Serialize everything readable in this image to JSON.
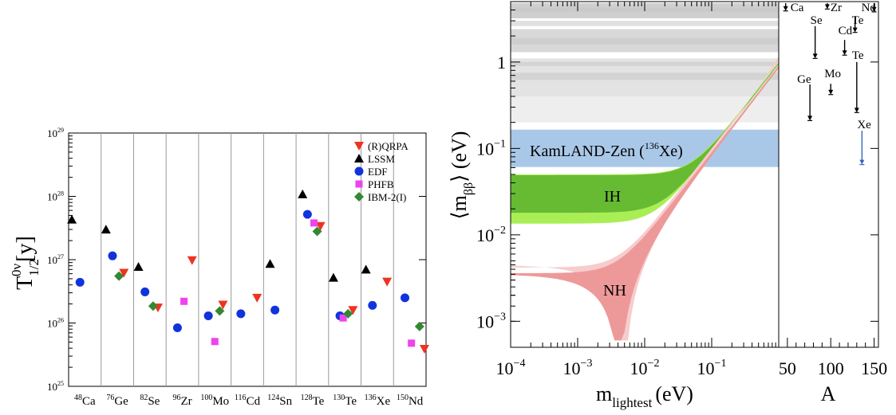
{
  "colors": {
    "qrpa": "#ee3322",
    "lssm": "#000000",
    "edf": "#1133dd",
    "phfb": "#ee44ee",
    "ibm": "#338833",
    "ih_dark": "#66bb33",
    "ih_light": "#aaee55",
    "nh_dark": "#ee9999",
    "nh_light": "#f7cccc",
    "kamland": "#a9c8e8",
    "sens_arrow": "#3366bb"
  },
  "chart_data": [
    {
      "type": "scatter",
      "ylabel": "T",
      "ylabel_sup": "0ν",
      "ylabel_sub": "1/2",
      "ylabel_unit": "[y]",
      "y_scale": "log",
      "ylim": [
        1e+25,
        1e+29
      ],
      "yticks": [
        {
          "value": 1e+25,
          "mant": "10",
          "exp": "25"
        },
        {
          "value": 1e+26,
          "mant": "10",
          "exp": "26"
        },
        {
          "value": 1e+27,
          "mant": "10",
          "exp": "27"
        },
        {
          "value": 1e+28,
          "mant": "10",
          "exp": "28"
        },
        {
          "value": 1e+29,
          "mant": "10",
          "exp": "29"
        }
      ],
      "categories": [
        {
          "mass": "48",
          "sym": "Ca"
        },
        {
          "mass": "76",
          "sym": "Ge"
        },
        {
          "mass": "82",
          "sym": "Se"
        },
        {
          "mass": "96",
          "sym": "Zr"
        },
        {
          "mass": "100",
          "sym": "Mo"
        },
        {
          "mass": "116",
          "sym": "Cd"
        },
        {
          "mass": "124",
          "sym": "Sn"
        },
        {
          "mass": "128",
          "sym": "Te"
        },
        {
          "mass": "130",
          "sym": "Te"
        },
        {
          "mass": "136",
          "sym": "Xe"
        },
        {
          "mass": "150",
          "sym": "Nd"
        }
      ],
      "legend_position": "top-right",
      "series": [
        {
          "name": "(R)QRPA",
          "marker": "triangle-down",
          "color": "#ee3322",
          "points": [
            [
              1,
              null
            ],
            [
              1.7,
              6.2e+26
            ],
            [
              2.75,
              1.75e+26
            ],
            [
              3.8,
              9.8e+26
            ],
            [
              4.75,
              1.95e+26
            ],
            [
              5.8,
              2.5e+26
            ],
            [
              7.75,
              3.4e+27
            ],
            [
              8.75,
              1.6e+26
            ],
            [
              9.8,
              4.5e+26
            ],
            [
              10.95,
              3.9e+25
            ]
          ]
        },
        {
          "name": "LSSM",
          "marker": "triangle-up",
          "color": "#000000",
          "points": [
            [
              0.1,
              4.3e+27
            ],
            [
              1.15,
              3e+27
            ],
            [
              2.15,
              7.7e+26
            ],
            [
              6.2,
              8.6e+26
            ],
            [
              7.2,
              1.08e+28
            ],
            [
              8.15,
              5.2e+26
            ],
            [
              9.15,
              7e+26
            ]
          ]
        },
        {
          "name": "EDF",
          "marker": "circle",
          "color": "#1133dd",
          "points": [
            [
              0.35,
              4.4e+26
            ],
            [
              1.35,
              1.15e+27
            ],
            [
              2.35,
              3.1e+26
            ],
            [
              3.35,
              8.4e+25
            ],
            [
              4.3,
              1.3e+26
            ],
            [
              5.3,
              1.4e+26
            ],
            [
              6.35,
              1.6e+26
            ],
            [
              7.35,
              5.2e+27
            ],
            [
              8.35,
              1.3e+26
            ],
            [
              9.35,
              1.9e+26
            ],
            [
              10.35,
              2.5e+26
            ]
          ]
        },
        {
          "name": "PHFB",
          "marker": "square",
          "color": "#ee44ee",
          "points": [
            [
              3.55,
              2.2e+26
            ],
            [
              4.5,
              5.1e+25
            ],
            [
              7.55,
              3.8e+27
            ],
            [
              8.45,
              1.2e+26
            ],
            [
              10.55,
              4.8e+25
            ]
          ]
        },
        {
          "name": "IBM-2(I)",
          "marker": "diamond",
          "color": "#338833",
          "points": [
            [
              1.55,
              5.5e+26
            ],
            [
              2.6,
              1.85e+26
            ],
            [
              4.65,
              1.55e+26
            ],
            [
              7.65,
              2.8e+27
            ],
            [
              8.6,
              1.4e+26
            ],
            [
              10.8,
              8.8e+25
            ]
          ]
        }
      ]
    },
    {
      "type": "area",
      "xlabel": "m",
      "xlabel_sub": "lightest",
      "xlabel_unit": "(eV)",
      "ylabel_open": "⟨m",
      "ylabel_sub": "ββ",
      "ylabel_close": "⟩ (eV)",
      "x_scale": "log",
      "y_scale": "log",
      "xlim": [
        0.0001,
        1.0
      ],
      "ylim": [
        0.0005,
        5.0
      ],
      "xticks": [
        {
          "value": 0.0001,
          "mant": "10",
          "exp": "−4"
        },
        {
          "value": 0.001,
          "mant": "10",
          "exp": "−3"
        },
        {
          "value": 0.01,
          "mant": "10",
          "exp": "−2"
        },
        {
          "value": 0.1,
          "mant": "10",
          "exp": "−1"
        }
      ],
      "yticks": [
        {
          "value": 0.001,
          "mant": "10",
          "exp": "−3"
        },
        {
          "value": 0.01,
          "mant": "10",
          "exp": "−2"
        },
        {
          "value": 0.1,
          "mant": "10",
          "exp": "−1"
        },
        {
          "value": 1,
          "mant": "1",
          "exp": ""
        }
      ],
      "regions": [
        {
          "label": "IH",
          "band": "inverted hierarchy",
          "y_at_low_mass": [
            0.0135,
            0.05
          ]
        },
        {
          "label": "NH",
          "band": "normal hierarchy",
          "y_at_low_mass": [
            0.0012,
            0.004
          ]
        }
      ],
      "limit_band": {
        "label_pre": "KamLAND-Zen (",
        "label_sup": "136",
        "label_post": "Xe)",
        "y_range": [
          0.061,
          0.165
        ]
      },
      "nme_bands_y": [
        [
          0.2,
          0.5
        ],
        [
          0.4,
          1.1
        ],
        [
          1.3,
          2.4
        ],
        [
          3.2,
          4.8
        ]
      ]
    },
    {
      "type": "scatter",
      "xlabel": "A",
      "xlim": [
        40,
        155
      ],
      "xticks": [
        50,
        100,
        150
      ],
      "ylim": [
        0.0005,
        5.0
      ],
      "isotopes": [
        {
          "label": "Ca",
          "A": 48,
          "y_range": [
            3.9,
            4.8
          ]
        },
        {
          "label": "Zr",
          "A": 96,
          "y_range": [
            4.1,
            4.8
          ]
        },
        {
          "label": "Nd",
          "A": 150,
          "y_range": [
            3.8,
            4.8
          ]
        },
        {
          "label": "Te",
          "A": 128,
          "y_range": [
            2.2,
            3.4
          ]
        },
        {
          "label": "Cd",
          "A": 116,
          "y_range": [
            1.2,
            1.8
          ]
        },
        {
          "label": "Se",
          "A": 82,
          "y_range": [
            1.1,
            2.6
          ]
        },
        {
          "label": "Te",
          "A": 130,
          "y_range": [
            0.26,
            1.0
          ]
        },
        {
          "label": "Mo",
          "A": 100,
          "y_range": [
            0.42,
            0.56
          ]
        },
        {
          "label": "Ge",
          "A": 76,
          "y_range": [
            0.21,
            0.55
          ]
        },
        {
          "label": "Xe",
          "A": 136,
          "y_range": [
            0.065,
            0.16
          ]
        }
      ]
    }
  ]
}
